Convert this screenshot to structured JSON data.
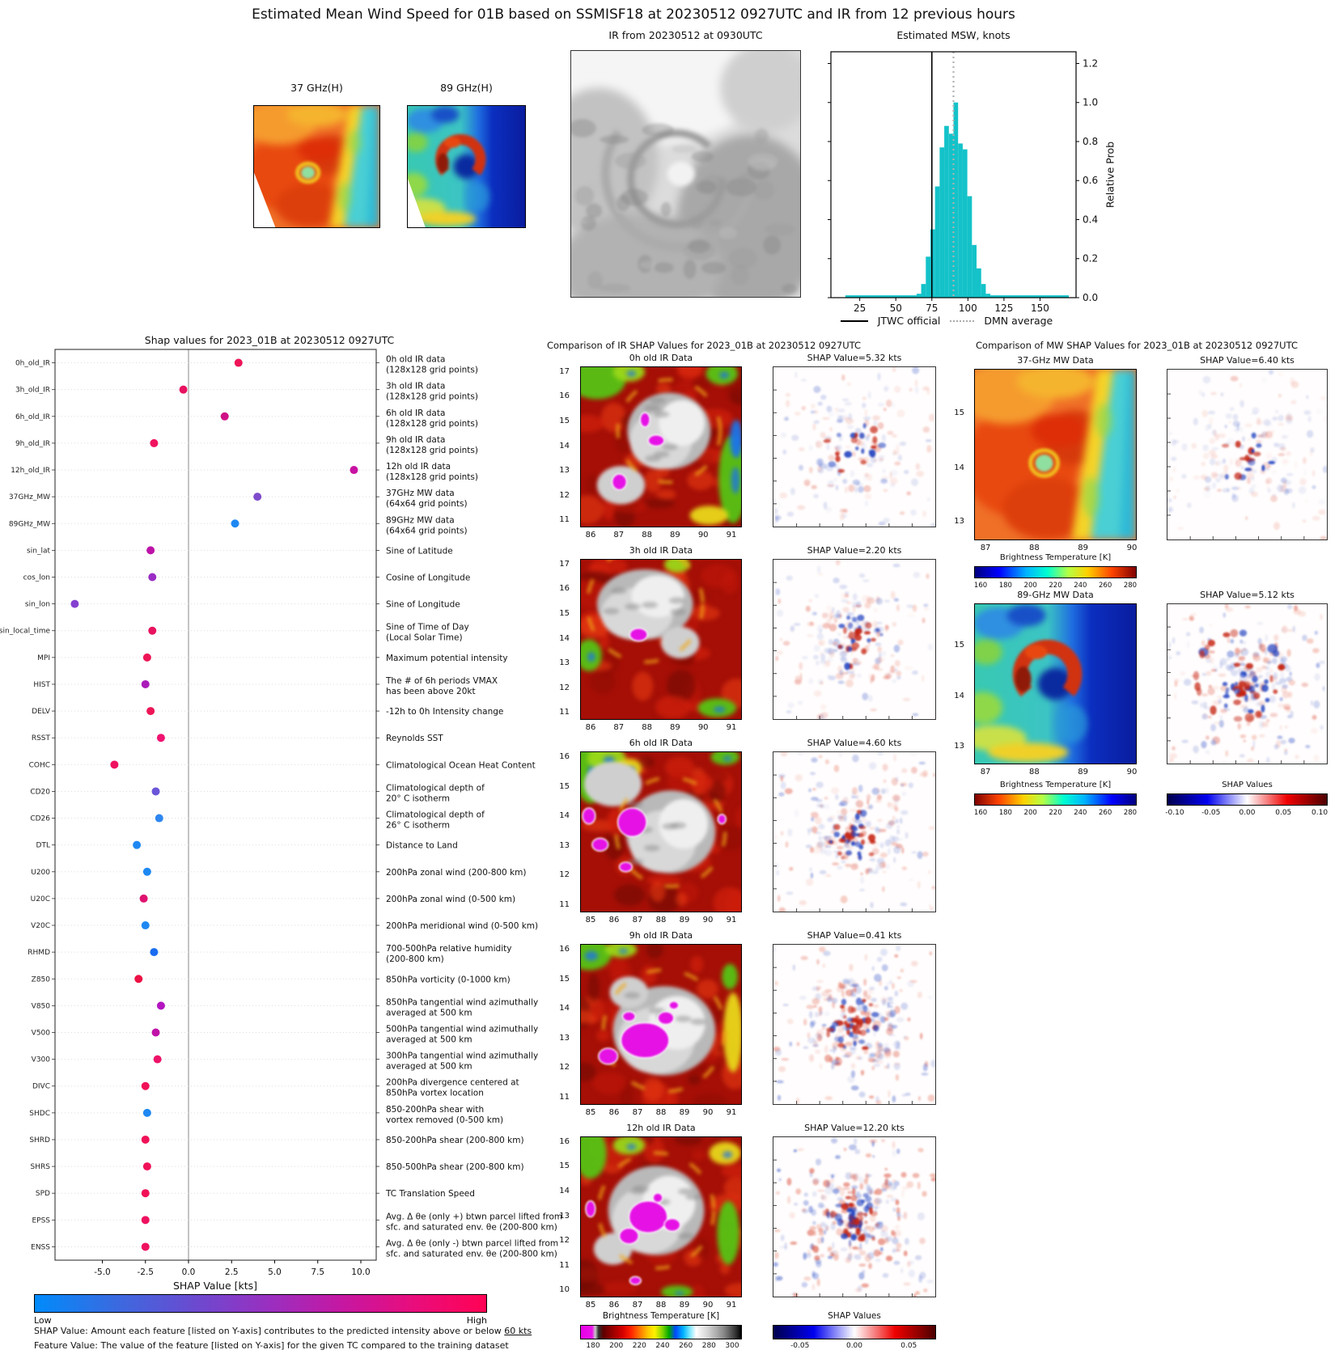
{
  "figure_title": "Estimated Mean Wind Speed for 01B based on SSMISF18 at 20230512 0927UTC and IR from 12 previous hours",
  "top_panels": {
    "mw37_label": "37 GHz(H)",
    "mw89_label": "89 GHz(H)",
    "ir_label": "IR from 20230512 at 0930UTC",
    "hist_label": "Estimated MSW, knots",
    "hist_ylabel": "Relative Prob",
    "legend": {
      "jtwc": "JTWC official",
      "dmn": "DMN average"
    }
  },
  "shap_panel": {
    "title": "Shap values for 2023_01B at 20230512 0927UTC",
    "xlabel": "SHAP Value [kts]",
    "colorbar_low": "Low",
    "colorbar_high": "High",
    "footnote1_prefix": "SHAP Value: Amount each feature [listed on Y-axis] contributes to the predicted intensity above or below ",
    "footnote1_underlined": "60 kts",
    "footnote2": "Feature Value: The value of the feature [listed on Y-axis] for the given TC compared to the training dataset"
  },
  "ir_panel": {
    "title": "Comparison of IR SHAP Values for 2023_01B at 20230512 0927UTC",
    "bt_colorbar_label": "Brightness Temperature [K]",
    "bt_ticks": [
      180,
      200,
      220,
      240,
      260,
      280,
      300
    ],
    "shap_colorbar_label": "SHAP Values",
    "shap_ticks": [
      "-0.05",
      "0.00",
      "0.05"
    ]
  },
  "mw_panel": {
    "title": "Comparison of MW SHAP Values for 2023_01B at 20230512 0927UTC",
    "bt_colorbar_label": "Brightness Temperature [K]",
    "bt_ticks": [
      160,
      180,
      200,
      220,
      240,
      260,
      280
    ],
    "shap_colorbar_label": "SHAP Values",
    "shap_ticks": [
      "-0.10",
      "-0.05",
      "0.00",
      "0.05",
      "0.10"
    ]
  },
  "chart_data": [
    {
      "id": "estimated_msw_histogram",
      "type": "bar",
      "title": "Estimated MSW, knots",
      "ylabel": "Relative Prob",
      "xlim": [
        5,
        175
      ],
      "ylim": [
        0,
        1.26
      ],
      "xticks": [
        25,
        50,
        75,
        100,
        125,
        150
      ],
      "yticks": [
        0.0,
        0.2,
        0.4,
        0.6,
        0.8,
        1.0,
        1.2
      ],
      "bar_color": "#14c2c9",
      "bin_width": 3.2,
      "bins_x": [
        66,
        69.2,
        72.4,
        75.6,
        78.8,
        82,
        85.2,
        88.4,
        91.6,
        94.8,
        98,
        101.2,
        104.4,
        107.6,
        110.8,
        114
      ],
      "bins_y": [
        0.02,
        0.07,
        0.21,
        0.35,
        0.57,
        0.77,
        0.88,
        0.84,
        1.0,
        0.79,
        0.76,
        0.52,
        0.27,
        0.15,
        0.07,
        0.02
      ],
      "baseline": {
        "x0": 15,
        "x1": 170,
        "y": 0.012
      },
      "jtwc_official": 75,
      "dmn_average": 90,
      "legend": [
        "JTWC official",
        "DMN average"
      ]
    },
    {
      "id": "shap_values",
      "type": "scatter",
      "title": "Shap values for 2023_01B at 20230512 0927UTC",
      "xlabel": "SHAP Value [kts]",
      "xticks": [
        -5.0,
        -2.5,
        0.0,
        2.5,
        5.0,
        7.5,
        10.0
      ],
      "xlim": [
        -7.7,
        10.9
      ],
      "features": [
        {
          "name": "0h_old_IR",
          "shap": 2.9,
          "color": "#ee1458",
          "desc": "0h old IR data\n(128x128 grid points)"
        },
        {
          "name": "3h_old_IR",
          "shap": -0.3,
          "color": "#e81260",
          "desc": "3h old IR data\n(128x128 grid points)"
        },
        {
          "name": "6h_old_IR",
          "shap": 2.1,
          "color": "#cf1186",
          "desc": "6h old IR data\n(128x128 grid points)"
        },
        {
          "name": "9h_old_IR",
          "shap": -2.0,
          "color": "#f01260",
          "desc": "9h old IR data\n(128x128 grid points)"
        },
        {
          "name": "12h_old_IR",
          "shap": 9.6,
          "color": "#c711a2",
          "desc": "12h old IR data\n(128x128 grid points)"
        },
        {
          "name": "37GHz_MW",
          "shap": 4.0,
          "color": "#7e4bcc",
          "desc": "37GHz MW data\n(64x64 grid points)"
        },
        {
          "name": "89GHz_MW",
          "shap": 2.7,
          "color": "#1e88f2",
          "desc": "89GHz MW data\n(64x64 grid points)"
        },
        {
          "name": "sin_lat",
          "shap": -2.2,
          "color": "#bd12a8",
          "desc": "Sine of Latitude"
        },
        {
          "name": "cos_lon",
          "shap": -2.1,
          "color": "#9a2cc4",
          "desc": "Cosine of Longitude"
        },
        {
          "name": "sin_lon",
          "shap": -6.6,
          "color": "#8540d0",
          "desc": "Sine of Longitude"
        },
        {
          "name": "sin_local_time",
          "shap": -2.1,
          "color": "#e8125e",
          "desc": "Sine of Time of Day\n(Local Solar Time)"
        },
        {
          "name": "MPI",
          "shap": -2.4,
          "color": "#ed1556",
          "desc": "Maximum potential intensity"
        },
        {
          "name": "HIST",
          "shap": -2.5,
          "color": "#aa1bba",
          "desc": "The # of 6h periods VMAX\nhas been above 20kt"
        },
        {
          "name": "DELV",
          "shap": -2.2,
          "color": "#ed1556",
          "desc": "-12h to 0h Intensity change"
        },
        {
          "name": "RSST",
          "shap": -1.6,
          "color": "#f01270",
          "desc": "Reynolds SST"
        },
        {
          "name": "COHC",
          "shap": -4.3,
          "color": "#ee1160",
          "desc": "Climatological Ocean Heat Content"
        },
        {
          "name": "CD20",
          "shap": -1.9,
          "color": "#6a56d8",
          "desc": "Climatological depth of\n20° C isotherm"
        },
        {
          "name": "CD26",
          "shap": -1.7,
          "color": "#2e86f0",
          "desc": "Climatological depth of\n26° C isotherm"
        },
        {
          "name": "DTL",
          "shap": -3.0,
          "color": "#1e88f2",
          "desc": "Distance to Land"
        },
        {
          "name": "U200",
          "shap": -2.4,
          "color": "#1e88f2",
          "desc": "200hPa zonal wind (200-800 km)"
        },
        {
          "name": "U20C",
          "shap": -2.6,
          "color": "#e01270",
          "desc": "200hPa zonal wind (0-500 km)"
        },
        {
          "name": "V20C",
          "shap": -2.5,
          "color": "#1e88f2",
          "desc": "200hPa meridional wind (0-500 km)"
        },
        {
          "name": "RHMD",
          "shap": -2.0,
          "color": "#1a6cf0",
          "desc": "700-500hPa relative humidity\n(200-800 km)"
        },
        {
          "name": "Z850",
          "shap": -2.9,
          "color": "#ed1044",
          "desc": "850hPa vorticity (0-1000 km)"
        },
        {
          "name": "V850",
          "shap": -1.6,
          "color": "#b315c0",
          "desc": "850hPa tangential wind azimuthally\naveraged at 500 km"
        },
        {
          "name": "V500",
          "shap": -1.9,
          "color": "#c012a8",
          "desc": "500hPa tangential wind azimuthally\naveraged at 500 km"
        },
        {
          "name": "V300",
          "shap": -1.8,
          "color": "#ee1269",
          "desc": "300hPa tangential wind azimuthally\naveraged at 500 km"
        },
        {
          "name": "DIVC",
          "shap": -2.5,
          "color": "#f01158",
          "desc": "200hPa divergence centered at\n850hPa vortex location"
        },
        {
          "name": "SHDC",
          "shap": -2.4,
          "color": "#1e88f2",
          "desc": "850-200hPa shear with\nvortex removed (0-500 km)"
        },
        {
          "name": "SHRD",
          "shap": -2.5,
          "color": "#f01158",
          "desc": "850-200hPa shear (200-800 km)"
        },
        {
          "name": "SHRS",
          "shap": -2.4,
          "color": "#f01158",
          "desc": "850-500hPa shear (200-800 km)"
        },
        {
          "name": "SPD",
          "shap": -2.5,
          "color": "#f01158",
          "desc": "TC Translation Speed"
        },
        {
          "name": "EPSS",
          "shap": -2.5,
          "color": "#ee1160",
          "desc": "Avg. Δ θe (only +) btwn parcel lifted from\nsfc. and saturated env. θe (200-800 km)"
        },
        {
          "name": "ENSS",
          "shap": -2.5,
          "color": "#ee1160",
          "desc": "Avg. Δ θe (only -) btwn parcel lifted from\nsfc. and saturated env. θe (200-800 km)"
        }
      ]
    },
    {
      "id": "ir_shap_comparison",
      "type": "heatmap",
      "title": "Comparison of IR SHAP Values for 2023_01B at 20230512 0927UTC",
      "rows": [
        {
          "data_title": "0h old IR Data",
          "shap_title": "SHAP Value=5.32 kts",
          "shap_kts": 5.32,
          "yticks": [
            17,
            16,
            15,
            14,
            13,
            12,
            11
          ],
          "xticks": [
            86,
            87,
            88,
            89,
            90,
            91
          ],
          "noise": 0.3
        },
        {
          "data_title": "3h old IR Data",
          "shap_title": "SHAP Value=2.20 kts",
          "shap_kts": 2.2,
          "yticks": [
            17,
            16,
            15,
            14,
            13,
            12,
            11
          ],
          "xticks": [
            86,
            87,
            88,
            89,
            90,
            91
          ],
          "noise": 0.4
        },
        {
          "data_title": "6h old IR Data",
          "shap_title": "SHAP Value=4.60 kts",
          "shap_kts": 4.6,
          "yticks": [
            16,
            15,
            14,
            13,
            12,
            11
          ],
          "xticks": [
            85,
            86,
            87,
            88,
            89,
            90,
            91
          ],
          "noise": 0.55
        },
        {
          "data_title": "9h old IR Data",
          "shap_title": "SHAP Value=0.41 kts",
          "shap_kts": 0.41,
          "yticks": [
            16,
            15,
            14,
            13,
            12,
            11
          ],
          "xticks": [
            85,
            86,
            87,
            88,
            89,
            90,
            91
          ],
          "noise": 0.65
        },
        {
          "data_title": "12h old IR Data",
          "shap_title": "SHAP Value=12.20 kts",
          "shap_kts": 12.2,
          "yticks": [
            16,
            15,
            14,
            13,
            12,
            11,
            10
          ],
          "xticks": [
            85,
            86,
            87,
            88,
            89,
            90,
            91
          ],
          "noise": 0.85
        }
      ],
      "bt_scale": {
        "label": "Brightness Temperature [K]",
        "ticks": [
          180,
          200,
          220,
          240,
          260,
          280,
          300
        ]
      },
      "shap_scale": {
        "label": "SHAP Values",
        "ticks": [
          -0.05,
          0.0,
          0.05
        ]
      }
    },
    {
      "id": "mw_shap_comparison",
      "type": "heatmap",
      "title": "Comparison of MW SHAP Values for 2023_01B at 20230512 0927UTC",
      "rows": [
        {
          "data_title": "37-GHz MW Data",
          "shap_title": "SHAP Value=6.40 kts",
          "shap_kts": 6.4,
          "yticks": [
            15,
            14,
            13
          ],
          "xticks": [
            87,
            88,
            89,
            90
          ],
          "noise": 0.25,
          "map": "mw37"
        },
        {
          "data_title": "89-GHz MW Data",
          "shap_title": "SHAP Value=5.12 kts",
          "shap_kts": 5.12,
          "yticks": [
            15,
            14,
            13
          ],
          "xticks": [
            87,
            88,
            89,
            90
          ],
          "noise": 0.6,
          "map": "mw89"
        }
      ],
      "bt_scale": {
        "label": "Brightness Temperature [K]",
        "ticks": [
          160,
          180,
          200,
          220,
          240,
          260,
          280
        ]
      },
      "shap_scale": {
        "label": "SHAP Values",
        "ticks": [
          -0.1,
          -0.05,
          0.0,
          0.05,
          0.1
        ]
      }
    }
  ]
}
